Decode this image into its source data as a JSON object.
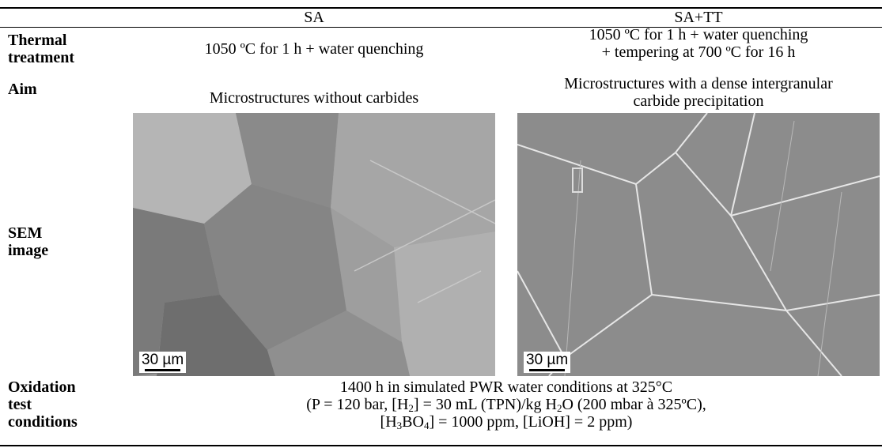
{
  "header": {
    "columns": [
      "SA",
      "SA+TT"
    ]
  },
  "rows": [
    {
      "label": [
        "Thermal",
        "treatment"
      ],
      "cells": [
        [
          "1050 ºC for 1 h + water quenching"
        ],
        [
          "1050 ºC for 1 h + water quenching",
          "+ tempering at 700 ºC for 16 h"
        ]
      ]
    },
    {
      "label": [
        "Aim"
      ],
      "cells": [
        [
          "Microstructures without carbides"
        ],
        [
          "Microstructures with a dense intergranular",
          "carbide precipitation"
        ]
      ]
    },
    {
      "label": [
        "SEM",
        "image"
      ],
      "scale_bars": [
        "30 µm",
        "30 µm"
      ]
    },
    {
      "label": [
        "Oxidation",
        "test",
        "conditions"
      ],
      "lines": [
        [
          "1400 h in simulated PWR water conditions at 325°C"
        ],
        [
          "(P = 120 bar, [H",
          "2",
          "] = 30 mL (TPN)/kg H",
          "2",
          "O (200 mbar à 325ºC),"
        ],
        [
          "[H",
          "3",
          "BO",
          "4",
          "] = 1000 ppm, [LiOH] = 2 ppm)"
        ]
      ]
    }
  ]
}
